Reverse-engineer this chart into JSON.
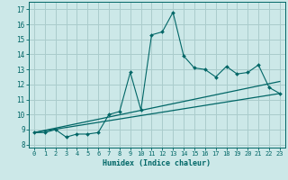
{
  "xlabel": "Humidex (Indice chaleur)",
  "bg_color": "#cce8e8",
  "grid_color": "#aacccc",
  "line_color": "#006666",
  "xlim": [
    -0.5,
    23.5
  ],
  "ylim": [
    7.8,
    17.5
  ],
  "x_ticks": [
    0,
    1,
    2,
    3,
    4,
    5,
    6,
    7,
    8,
    9,
    10,
    11,
    12,
    13,
    14,
    15,
    16,
    17,
    18,
    19,
    20,
    21,
    22,
    23
  ],
  "y_ticks": [
    8,
    9,
    10,
    11,
    12,
    13,
    14,
    15,
    16,
    17
  ],
  "series1_x": [
    0,
    1,
    2,
    3,
    4,
    5,
    6,
    7,
    8,
    9,
    10,
    11,
    12,
    13,
    14,
    15,
    16,
    17,
    18,
    19,
    20,
    21,
    22,
    23
  ],
  "series1_y": [
    8.8,
    8.8,
    9.0,
    8.5,
    8.7,
    8.7,
    8.8,
    10.0,
    10.2,
    12.8,
    10.3,
    15.3,
    15.5,
    16.8,
    13.9,
    13.1,
    13.0,
    12.5,
    13.2,
    12.7,
    12.8,
    13.3,
    11.8,
    11.4
  ],
  "series2_x": [
    0,
    23
  ],
  "series2_y": [
    8.8,
    11.4
  ],
  "series3_x": [
    0,
    23
  ],
  "series3_y": [
    8.8,
    12.2
  ]
}
